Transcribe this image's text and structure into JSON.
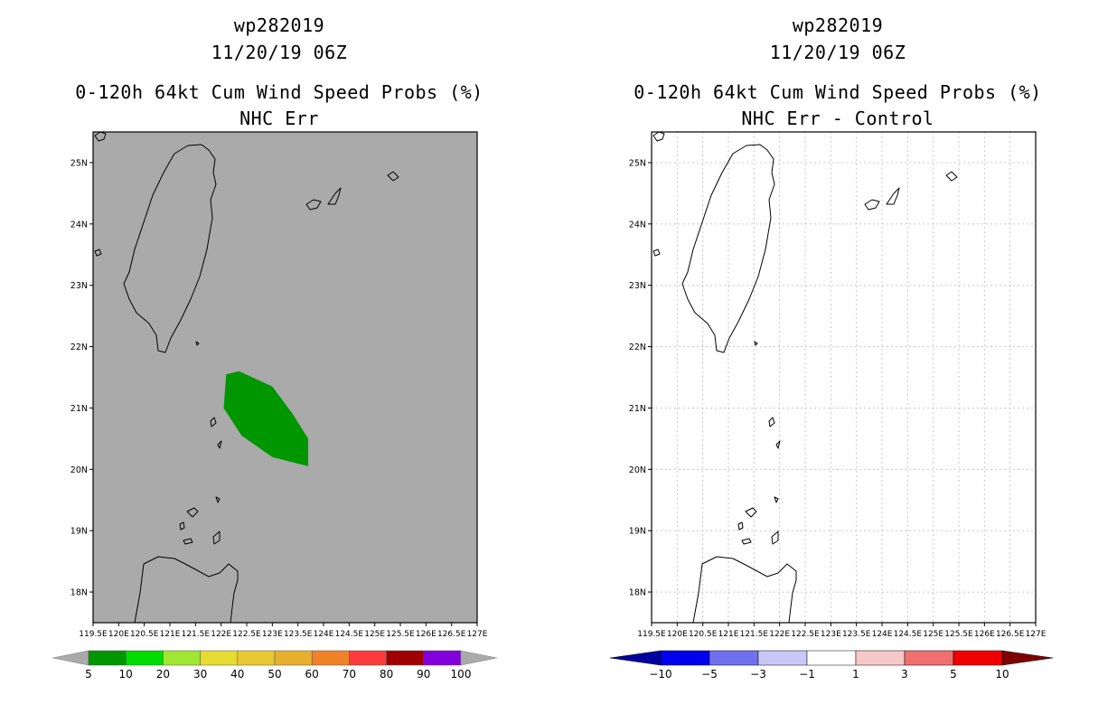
{
  "panels": [
    {
      "storm_id": "wp282019",
      "datetime": "11/20/19 06Z",
      "product": "0-120h 64kt Cum Wind Speed Probs (%)",
      "subtitle": "NHC Err",
      "background_color": "#aaaaaa",
      "grid": false,
      "colorbar": {
        "labels": [
          "5",
          "10",
          "20",
          "30",
          "40",
          "50",
          "60",
          "70",
          "80",
          "90",
          "100"
        ],
        "colors": [
          "#009600",
          "#00dc00",
          "#a0e632",
          "#e6dc32",
          "#e6c832",
          "#e6af2d",
          "#f08228",
          "#fa3c3c",
          "#a00000",
          "#8200dc"
        ],
        "end_color": "#aaaaaa"
      }
    },
    {
      "storm_id": "wp282019",
      "datetime": "11/20/19 06Z",
      "product": "0-120h 64kt Cum Wind Speed Probs (%)",
      "subtitle": "NHC Err - Control",
      "background_color": "#ffffff",
      "grid": true,
      "colorbar": {
        "labels": [
          "-10",
          "-5",
          "-3",
          "-1",
          "1",
          "3",
          "5",
          "10"
        ],
        "colors": [
          "#0000f0",
          "#7070f0",
          "#c8c8f8",
          "#ffffff",
          "#f8c8c8",
          "#f07070",
          "#f00000"
        ],
        "end_left_color": "#0000a0",
        "end_right_color": "#800000"
      }
    }
  ],
  "axes": {
    "x_labels": [
      "119.5E",
      "120E",
      "120.5E",
      "121E",
      "121.5E",
      "122E",
      "122.5E",
      "123E",
      "123.5E",
      "124E",
      "124.5E",
      "125E",
      "125.5E",
      "126E",
      "126.5E",
      "127E"
    ],
    "y_labels": [
      "18N",
      "19N",
      "20N",
      "21N",
      "22N",
      "23N",
      "24N",
      "25N"
    ],
    "lon_range": [
      119.5,
      127.0
    ],
    "lat_range": [
      17.5,
      25.5
    ]
  },
  "probability_area": {
    "level": "5-10",
    "color": "#009600",
    "polygon_lonlat": [
      [
        122.1,
        21.55
      ],
      [
        122.35,
        21.6
      ],
      [
        123.0,
        21.35
      ],
      [
        123.4,
        20.9
      ],
      [
        123.7,
        20.5
      ],
      [
        123.7,
        20.05
      ],
      [
        123.0,
        20.2
      ],
      [
        122.4,
        20.55
      ],
      [
        122.05,
        21.0
      ]
    ]
  }
}
